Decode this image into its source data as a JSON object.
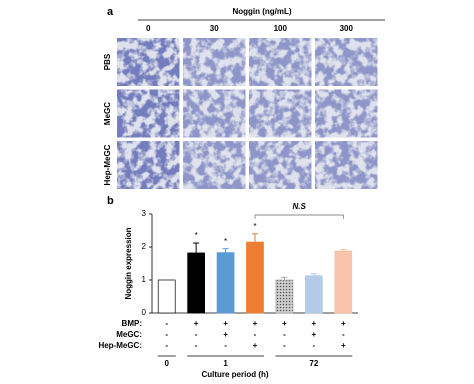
{
  "panel_a": {
    "label": "a",
    "title": "Noggin (ng/mL)",
    "columns": [
      "0",
      "30",
      "100",
      "300"
    ],
    "rows": [
      "PBS",
      "MeGC",
      "Hep-MeGC"
    ]
  },
  "chart_data": {
    "type": "bar",
    "panel_label": "b",
    "y_label": "Noggin expression",
    "x_label": "Culture period (h)",
    "values": [
      1.0,
      1.82,
      1.83,
      2.15,
      1.0,
      1.13,
      1.88
    ],
    "errors": [
      0,
      0.3,
      0.12,
      0.25,
      0.08,
      0.06,
      0.05
    ],
    "colors": [
      "#ffffff",
      "#000000",
      "#5b9bd5",
      "#ed7d31",
      "#a6a6a6",
      "#b4cbe8",
      "#f8c4ac"
    ],
    "asterisks": [
      null,
      "*",
      "*",
      "*",
      null,
      null,
      null
    ],
    "ylim": [
      0,
      3
    ],
    "yticks": [
      0,
      1,
      2,
      3
    ],
    "bracket": {
      "text": "N.S",
      "from": 3,
      "to": 6
    },
    "conditions": [
      {
        "label": "BMP:",
        "values": [
          "-",
          "+",
          "+",
          "+",
          "+",
          "+",
          "+"
        ]
      },
      {
        "label": "MeGC:",
        "values": [
          "-",
          "-",
          "+",
          "-",
          "-",
          "+",
          "-"
        ]
      },
      {
        "label": "Hep-MeGC:",
        "values": [
          "-",
          "-",
          "-",
          "+",
          "-",
          "-",
          "+"
        ]
      }
    ],
    "groups": [
      {
        "label": "0",
        "size": 1
      },
      {
        "label": "1",
        "size": 3
      },
      {
        "label": "72",
        "size": 3
      }
    ]
  }
}
